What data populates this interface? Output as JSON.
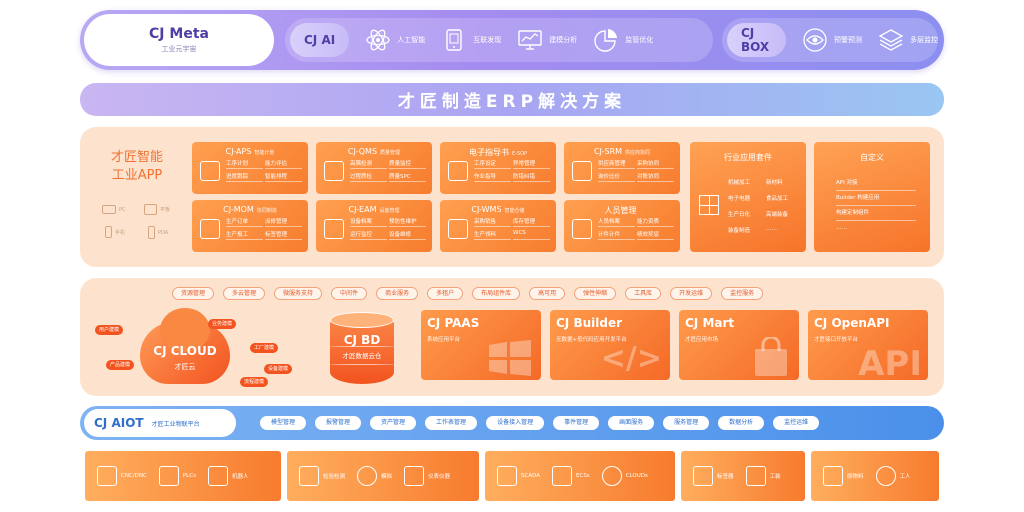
{
  "meta": {
    "title": "CJ Meta",
    "subtitle": "工业元宇宙",
    "ai_group": {
      "label": "CJ AI",
      "items": [
        {
          "label": "人工智能",
          "icon": "atom-icon"
        },
        {
          "label": "互联发现",
          "icon": "tablet-icon"
        },
        {
          "label": "建模分析",
          "icon": "monitor-chart-icon"
        },
        {
          "label": "监管优化",
          "icon": "pie-chart-icon"
        }
      ]
    },
    "box_group": {
      "label": "CJ BOX",
      "items": [
        {
          "label": "预警预测",
          "icon": "eye-icon"
        },
        {
          "label": "多层监控",
          "icon": "layers-icon"
        }
      ]
    }
  },
  "banner": {
    "title": "才匠制造ERP解决方案"
  },
  "apps": {
    "title_line1": "才匠智能",
    "title_line2": "工业APP",
    "devices": [
      "PC",
      "平板",
      "手机",
      "PDA"
    ],
    "modules": [
      {
        "name": "CJ-APS",
        "sub": "智能计划",
        "items": [
          "工序计划",
          "能力评估",
          "进度跟踪",
          "智能排程"
        ]
      },
      {
        "name": "CJ-QMS",
        "sub": "质量管理",
        "items": [
          "高隅检测",
          "质量监控",
          "过程质检",
          "质量SPC"
        ]
      },
      {
        "name": "电子指导书",
        "sub": "E-SOP",
        "items": [
          "工序设定",
          "异常管理",
          "作业指导",
          "防错纠错"
        ]
      },
      {
        "name": "CJ-SRM",
        "sub": "供应商协同",
        "items": [
          "供应商管理",
          "采购协同",
          "询价比价",
          "对账协同"
        ]
      },
      {
        "name": "CJ-MOM",
        "sub": "协同制造",
        "items": [
          "生产订单",
          "派修管理",
          "生产报工",
          "标签管理"
        ]
      },
      {
        "name": "CJ-EAM",
        "sub": "设备管理",
        "items": [
          "设备档案",
          "预防性维护",
          "运行监控",
          "设备维修"
        ]
      },
      {
        "name": "CJ-WMS",
        "sub": "智能仓储",
        "items": [
          "采购销售",
          "库存管理",
          "生产领料",
          "WCS"
        ]
      },
      {
        "name": "人员管理",
        "sub": "",
        "items": [
          "人员档案",
          "能力资质",
          "计件计件",
          "绩效奖惩"
        ]
      }
    ],
    "suites": [
      {
        "title": "行业应用套件",
        "items": [
          "机械加工",
          "新材料",
          "电子电器",
          "食品加工",
          "生产日化",
          "高端装备",
          "装备制造",
          "……"
        ]
      },
      {
        "title": "自定义",
        "items": [
          "API 对接",
          "Builder 构建应用",
          "构建定制组件",
          "……"
        ]
      }
    ]
  },
  "paas": {
    "services": [
      "资源管理",
      "多云管理",
      "微服务支持",
      "中间件",
      "商业服务",
      "多租户",
      "布局组件库",
      "高可用",
      "弹性伸缩",
      "工具库",
      "开发运维",
      "监控服务"
    ],
    "cloud": {
      "title": "CJ CLOUD",
      "subtitle": "才匠云",
      "tags": [
        "用户建模",
        "业务建模",
        "工厂建模",
        "产品建模",
        "设备建模",
        "流程建模"
      ]
    },
    "bd": {
      "title": "CJ BD",
      "subtitle": "才匠数据云仓"
    },
    "cards": [
      {
        "title": "CJ PAAS",
        "subtitle": "系统应用平台",
        "deco": "windows"
      },
      {
        "title": "CJ Builder",
        "subtitle": "无数据+低代码应用开发平台",
        "deco": "code"
      },
      {
        "title": "CJ Mart",
        "subtitle": "才匠应用市场",
        "deco": "bag"
      },
      {
        "title": "CJ OpenAPI",
        "subtitle": "才匠接口开放平台",
        "deco": "API"
      }
    ]
  },
  "aiot": {
    "title": "CJ AIOT",
    "subtitle": "才匠工业物联平台",
    "services": [
      "模型管理",
      "报警管理",
      "资产管理",
      "工作表管理",
      "设备接入管理",
      "事件管理",
      "画面服务",
      "服务管理",
      "数据分析",
      "监控运维"
    ]
  },
  "devices": [
    {
      "items": [
        {
          "label": "CNC/DNC",
          "icon": "cnc-icon"
        },
        {
          "label": "PLCs",
          "icon": "plc-icon"
        },
        {
          "label": "机器人",
          "icon": "robot-arm-icon"
        }
      ]
    },
    {
      "items": [
        {
          "label": "检验检测",
          "icon": "inspection-icon"
        },
        {
          "label": "模拟",
          "icon": "gauge-icon"
        },
        {
          "label": "仪表仪器",
          "icon": "instrument-icon"
        }
      ]
    },
    {
      "items": [
        {
          "label": "SCADA",
          "icon": "scada-icon"
        },
        {
          "label": "ECSs",
          "icon": "building-icon"
        },
        {
          "label": "CLOUDs",
          "icon": "cloud-icon"
        }
      ]
    },
    {
      "items": [
        {
          "label": "标签器",
          "icon": "stack-icon"
        },
        {
          "label": "工装",
          "icon": "fixture-icon"
        }
      ]
    },
    {
      "items": [
        {
          "label": "原物料",
          "icon": "material-icon"
        },
        {
          "label": "工人",
          "icon": "worker-icon"
        }
      ]
    }
  ]
}
